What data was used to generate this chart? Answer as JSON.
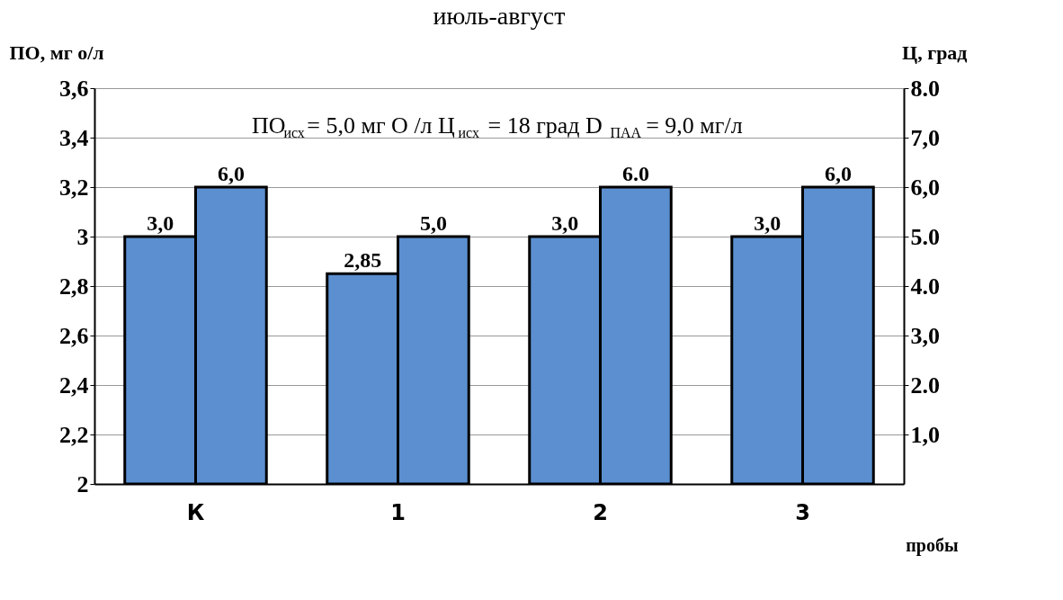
{
  "chart_data": {
    "type": "bar",
    "title": "июль-август",
    "xlabel": "пробы",
    "ylabel": "ПО, мг о/л",
    "y2label": "Ц, град",
    "categories": [
      "К",
      "1",
      "2",
      "3"
    ],
    "series": [
      {
        "color": "#5b8fd0",
        "values": [
          3.0,
          2.85,
          3.0,
          3.0
        ],
        "value_labels": [
          "3,0",
          "2,85",
          "3,0",
          "3,0"
        ]
      },
      {
        "color": "#5b8fd0",
        "axis": "y2",
        "values": [
          6.0,
          5.0,
          6.0,
          6.0
        ],
        "value_labels": [
          "6,0",
          "5,0",
          "6.0",
          "6,0"
        ]
      }
    ],
    "ylim": [
      2,
      3.6
    ],
    "yticks": [
      2,
      {
        "value": 2.2,
        "label": "2,2"
      },
      {
        "value": 2.4,
        "label": "2,4"
      },
      {
        "value": 2.6,
        "label": "2,6"
      },
      {
        "value": 2.8,
        "label": "2,8"
      },
      3,
      {
        "value": 3.2,
        "label": "3,2"
      },
      {
        "value": 3.4,
        "label": "3,4"
      },
      {
        "value": 3.6,
        "label": "3,6"
      }
    ],
    "y2lim": [
      0,
      8
    ],
    "y2ticks": [
      {
        "value": 1,
        "label": "1,0"
      },
      {
        "value": 2,
        "label": "2.0"
      },
      {
        "value": 3,
        "label": "3,0"
      },
      {
        "value": 4,
        "label": "4.0"
      },
      {
        "value": 5,
        "label": "5.0"
      },
      {
        "value": 6,
        "label": "6,0"
      },
      {
        "value": 7,
        "label": "7,0"
      },
      {
        "value": 8,
        "label": "8.0"
      }
    ],
    "annotations": [
      "ПО$_{исх}$= 5,0 мг О /л Ц$_{исх}$ = 18 град D$_{ПАА}$ = 9,0 мг/л"
    ],
    "grid": "y",
    "legend": false
  }
}
